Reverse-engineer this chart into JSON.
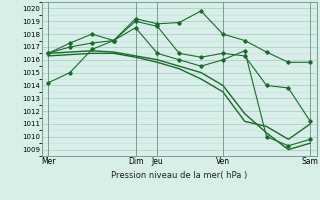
{
  "title": "Pression niveau de la mer( hPa )",
  "background_color": "#d8eee8",
  "grid_major_color": "#b0cfc8",
  "grid_minor_color": "#c8e0da",
  "line_color": "#1a6b2a",
  "ylim": [
    1008.5,
    1020.5
  ],
  "yticks": [
    1009,
    1010,
    1011,
    1012,
    1013,
    1014,
    1015,
    1016,
    1017,
    1018,
    1019,
    1020
  ],
  "xtick_positions": [
    0,
    4,
    5,
    8,
    12
  ],
  "xtick_labels": [
    "Mer",
    "Dim",
    "Jeu",
    "Ven",
    "Sam"
  ],
  "vline_positions": [
    0,
    4,
    5,
    8,
    12
  ],
  "vline_color": "#7a9e94",
  "series": [
    {
      "x": [
        0,
        1,
        2,
        3,
        4,
        5,
        6,
        7,
        8,
        9,
        10,
        11,
        12
      ],
      "y": [
        1014.2,
        1015.0,
        1016.8,
        1017.5,
        1019.2,
        1018.8,
        1018.9,
        1019.8,
        1018.0,
        1017.5,
        1016.6,
        1015.8,
        1015.8
      ],
      "marker": true,
      "linewidth": 0.8
    },
    {
      "x": [
        0,
        1,
        2,
        3,
        4,
        5,
        6,
        7,
        8,
        9,
        10,
        11,
        12
      ],
      "y": [
        1016.5,
        1017.3,
        1018.0,
        1017.5,
        1019.0,
        1018.6,
        1016.5,
        1016.2,
        1016.5,
        1016.3,
        1014.0,
        1013.8,
        1011.2
      ],
      "marker": true,
      "linewidth": 0.8
    },
    {
      "x": [
        0,
        1,
        2,
        3,
        4,
        5,
        6,
        7,
        8,
        9,
        10,
        11,
        12
      ],
      "y": [
        1016.5,
        1017.0,
        1017.3,
        1017.5,
        1018.5,
        1016.5,
        1016.0,
        1015.5,
        1016.0,
        1016.7,
        1010.0,
        1009.3,
        1009.8
      ],
      "marker": true,
      "linewidth": 0.8
    },
    {
      "x": [
        0,
        1,
        2,
        3,
        4,
        5,
        6,
        7,
        8,
        9,
        10,
        11,
        12
      ],
      "y": [
        1016.5,
        1016.6,
        1016.7,
        1016.6,
        1016.3,
        1016.0,
        1015.5,
        1015.0,
        1014.0,
        1011.8,
        1010.3,
        1009.0,
        1009.5
      ],
      "marker": false,
      "linewidth": 1.0
    },
    {
      "x": [
        0,
        1,
        2,
        3,
        4,
        5,
        6,
        7,
        8,
        9,
        10,
        11,
        12
      ],
      "y": [
        1016.3,
        1016.4,
        1016.5,
        1016.5,
        1016.2,
        1015.8,
        1015.3,
        1014.5,
        1013.5,
        1011.2,
        1010.8,
        1009.8,
        1011.0
      ],
      "marker": false,
      "linewidth": 1.0
    }
  ]
}
